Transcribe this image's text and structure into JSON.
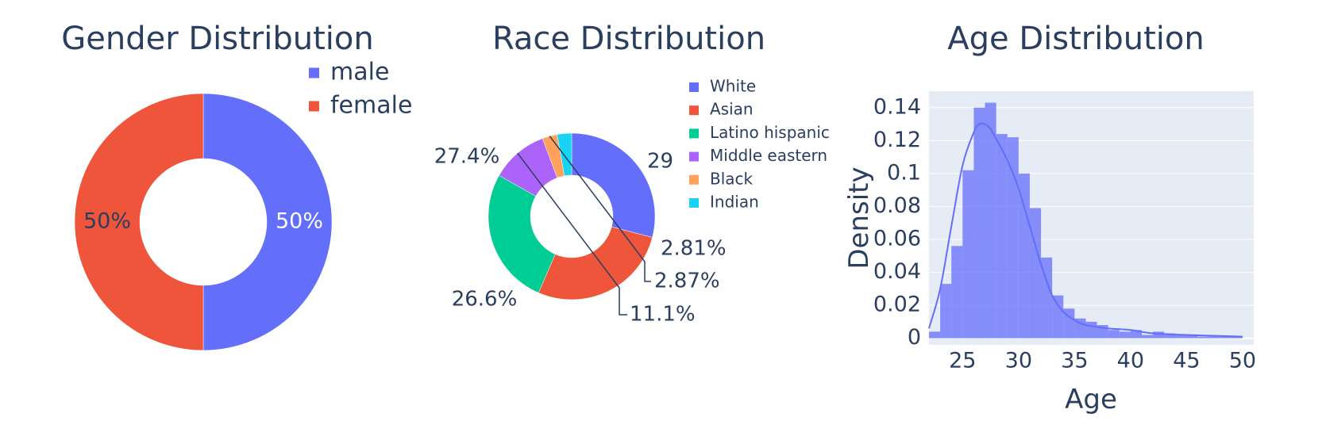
{
  "chart_data": [
    {
      "type": "pie",
      "hole": true,
      "title": "Gender Distribution",
      "labels": [
        "male",
        "female"
      ],
      "values": [
        50,
        50
      ],
      "text_labels": [
        "50%",
        "50%"
      ],
      "colors": [
        "#636efa",
        "#ef553b"
      ],
      "legend": "top-right"
    },
    {
      "type": "pie",
      "hole": true,
      "title": "Race Distribution",
      "labels": [
        "White",
        "Asian",
        "Latino hispanic",
        "Middle eastern",
        "Black",
        "Indian"
      ],
      "values": [
        29.0,
        27.4,
        26.6,
        11.1,
        2.87,
        2.81
      ],
      "text_labels": [
        "29",
        "27.4%",
        "26.6%",
        "11.1%",
        "2.87%",
        "2.81%"
      ],
      "colors": [
        "#636efa",
        "#ef553b",
        "#00cc96",
        "#ab63fa",
        "#ffa15a",
        "#19d3f3"
      ],
      "legend": "right"
    },
    {
      "type": "bar",
      "subtype": "histogram-with-density-curve",
      "title": "Age Distribution",
      "xlabel": "Age",
      "ylabel": "Density",
      "xlim": [
        22,
        51
      ],
      "ylim": [
        -0.004,
        0.15
      ],
      "xticks": [
        25,
        30,
        35,
        40,
        45,
        50
      ],
      "yticks": [
        0,
        0.02,
        0.04,
        0.06,
        0.08,
        0.1,
        0.12,
        0.14
      ],
      "ytick_labels": [
        "0",
        "0.02",
        "0.04",
        "0.06",
        "0.08",
        "0.1",
        "0.12",
        "0.14"
      ],
      "grid": true,
      "color": "#636efa",
      "bin_width": 1,
      "bins": [
        {
          "x0": 22,
          "density": 0.004
        },
        {
          "x0": 23,
          "density": 0.033
        },
        {
          "x0": 24,
          "density": 0.056
        },
        {
          "x0": 25,
          "density": 0.102
        },
        {
          "x0": 26,
          "density": 0.14
        },
        {
          "x0": 27,
          "density": 0.143
        },
        {
          "x0": 28,
          "density": 0.124
        },
        {
          "x0": 29,
          "density": 0.122
        },
        {
          "x0": 30,
          "density": 0.1
        },
        {
          "x0": 31,
          "density": 0.079
        },
        {
          "x0": 32,
          "density": 0.049
        },
        {
          "x0": 33,
          "density": 0.026
        },
        {
          "x0": 34,
          "density": 0.018
        },
        {
          "x0": 35,
          "density": 0.012
        },
        {
          "x0": 36,
          "density": 0.01
        },
        {
          "x0": 37,
          "density": 0.008
        },
        {
          "x0": 38,
          "density": 0.005
        },
        {
          "x0": 39,
          "density": 0.004
        },
        {
          "x0": 40,
          "density": 0.005
        },
        {
          "x0": 41,
          "density": 0.002
        },
        {
          "x0": 42,
          "density": 0.004
        },
        {
          "x0": 43,
          "density": 0.003
        },
        {
          "x0": 44,
          "density": 0.002
        },
        {
          "x0": 45,
          "density": 0.002
        },
        {
          "x0": 46,
          "density": 0.001
        },
        {
          "x0": 47,
          "density": 0.001
        },
        {
          "x0": 48,
          "density": 0.001
        },
        {
          "x0": 49,
          "density": 0.001
        }
      ],
      "density_curve": {
        "x": [
          22,
          23,
          24,
          25,
          26,
          26.5,
          27,
          27.5,
          28,
          29,
          30,
          31,
          32,
          33,
          34,
          35,
          36,
          38,
          40,
          42,
          45,
          50
        ],
        "y": [
          0.006,
          0.03,
          0.068,
          0.105,
          0.125,
          0.13,
          0.13,
          0.127,
          0.121,
          0.108,
          0.091,
          0.068,
          0.045,
          0.026,
          0.016,
          0.011,
          0.008,
          0.006,
          0.005,
          0.003,
          0.002,
          0.001
        ]
      }
    }
  ]
}
